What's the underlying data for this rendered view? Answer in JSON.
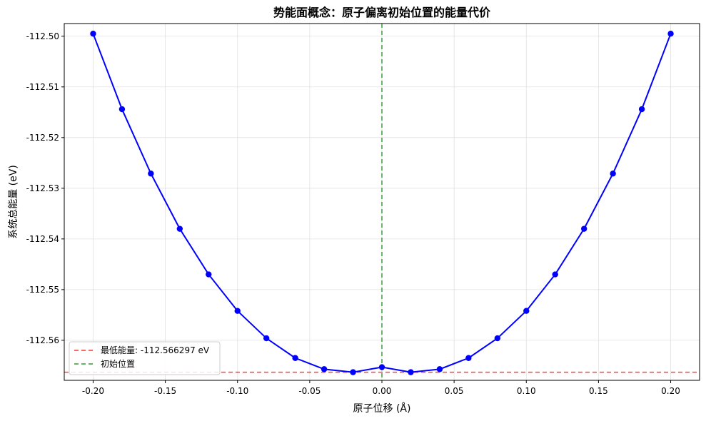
{
  "chart_data": {
    "type": "line",
    "title": "势能面概念：原子偏离初始位置的能量代价",
    "xlabel": "原子位移 (Å)",
    "ylabel": "系统总能量 (eV)",
    "xlim": [
      -0.22,
      0.22
    ],
    "ylim": [
      -112.5679,
      -112.4975
    ],
    "grid": true,
    "x_ticks": [
      -0.2,
      -0.15,
      -0.1,
      -0.05,
      0.0,
      0.05,
      0.1,
      0.15,
      0.2
    ],
    "x_tick_labels": [
      "-0.20",
      "-0.15",
      "-0.10",
      "-0.05",
      "0.00",
      "0.05",
      "0.10",
      "0.15",
      "0.20"
    ],
    "y_ticks": [
      -112.5,
      -112.51,
      -112.52,
      -112.53,
      -112.54,
      -112.55,
      -112.56
    ],
    "y_tick_labels": [
      "-112.50",
      "-112.51",
      "-112.52",
      "-112.53",
      "-112.54",
      "-112.55",
      "-112.56"
    ],
    "series": [
      {
        "name": "",
        "color": "#0000ff",
        "x": [
          -0.2,
          -0.18,
          -0.16,
          -0.14,
          -0.12,
          -0.1,
          -0.08,
          -0.06,
          -0.04,
          -0.02,
          0.0,
          0.02,
          0.04,
          0.06,
          0.08,
          0.1,
          0.12,
          0.14,
          0.16,
          0.18,
          0.2
        ],
        "y": [
          -112.4995,
          -112.5144,
          -112.5271,
          -112.538,
          -112.547,
          -112.5542,
          -112.5596,
          -112.5635,
          -112.5657,
          -112.5663,
          -112.5653,
          -112.5663,
          -112.5657,
          -112.5635,
          -112.5596,
          -112.5542,
          -112.547,
          -112.538,
          -112.5271,
          -112.5144,
          -112.4995
        ]
      }
    ],
    "reference_lines": [
      {
        "orientation": "horizontal",
        "value": -112.566297,
        "color": "#ff0000",
        "style": "dashed",
        "label": "最低能量: -112.566297 eV"
      },
      {
        "orientation": "vertical",
        "value": 0.0,
        "color": "#008000",
        "style": "dashed",
        "label": "初始位置"
      }
    ],
    "legend": {
      "position": "lower-left",
      "entries": [
        "最低能量: -112.566297 eV",
        "初始位置"
      ]
    }
  }
}
